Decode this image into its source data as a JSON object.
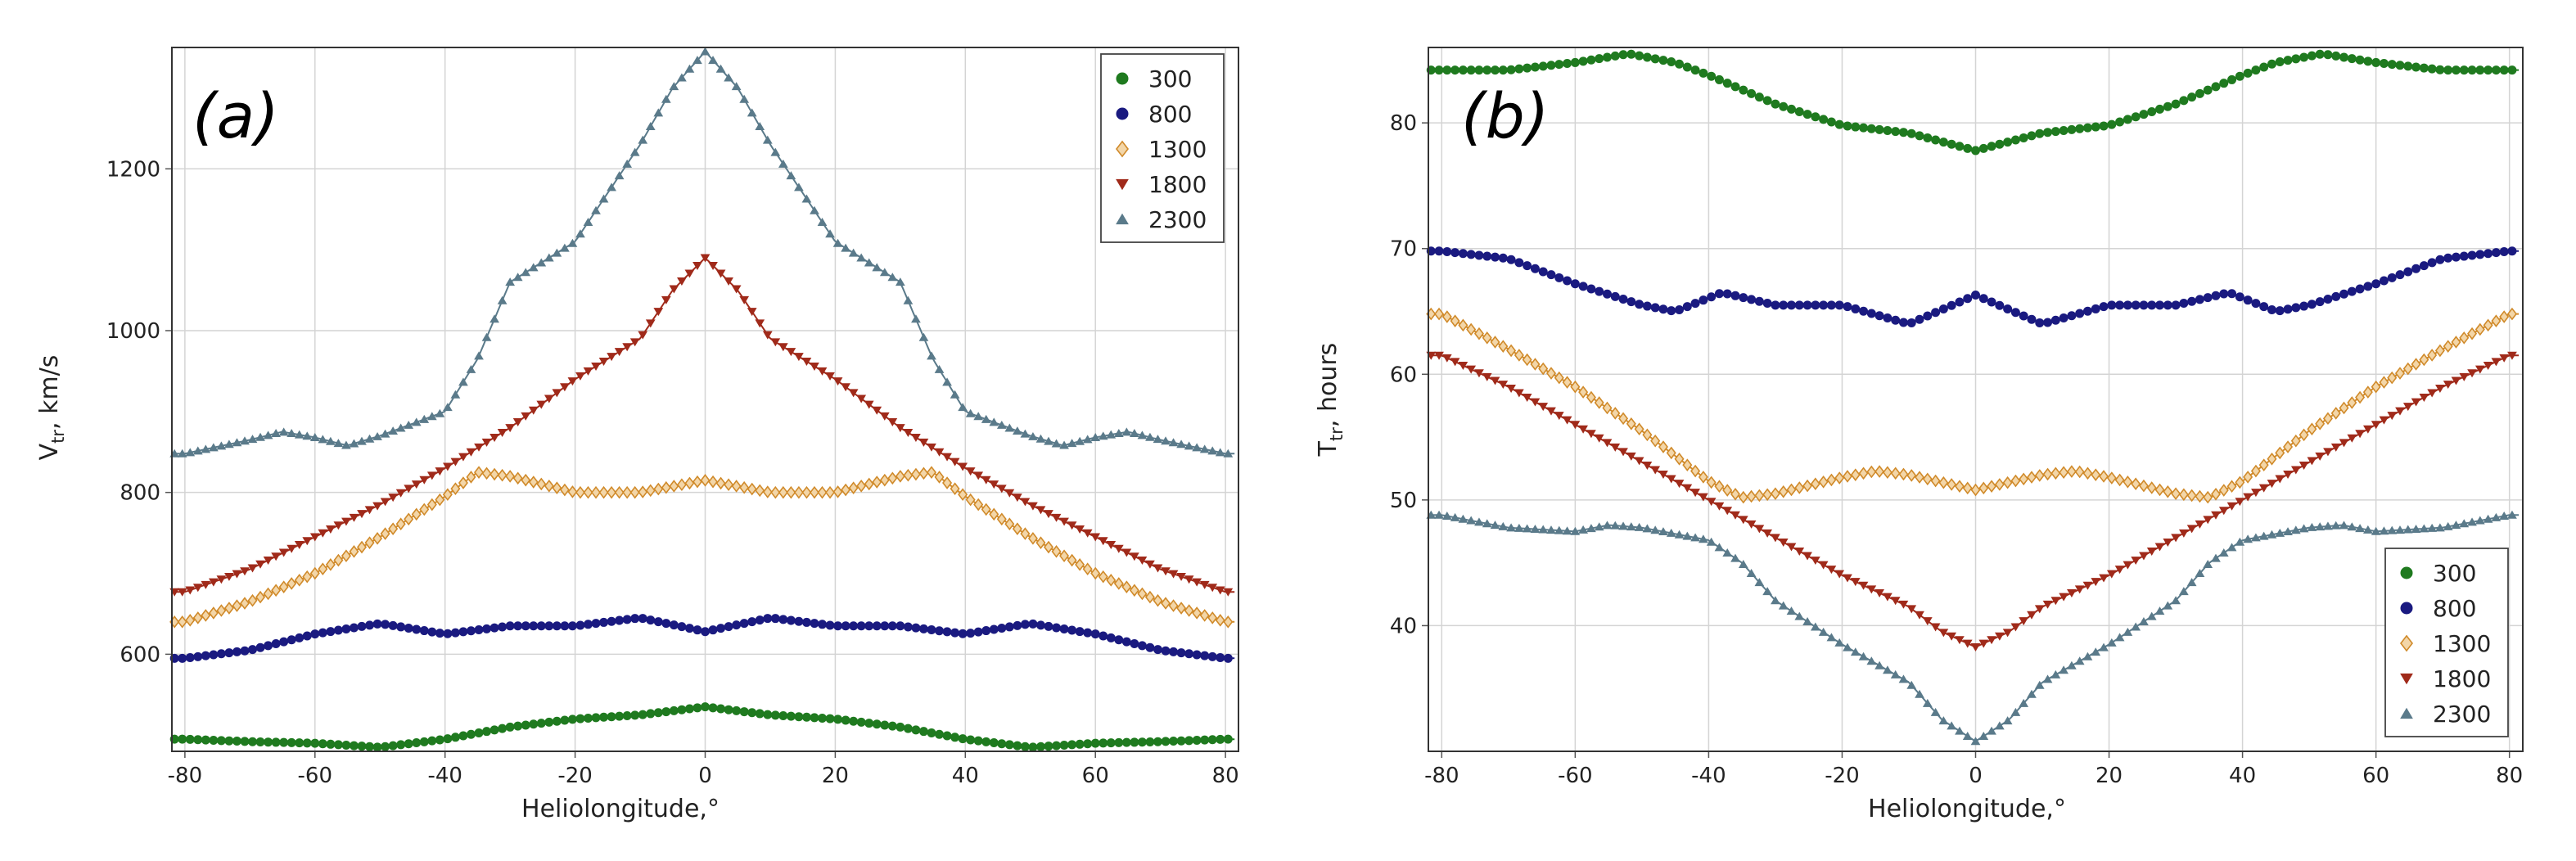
{
  "series_colors": {
    "300": "#1f7a1f",
    "800": "#1a1a80",
    "1300": "#d08a2a",
    "1800": "#a02a1a",
    "2300": "#5a7a8a"
  },
  "chart_data": [
    {
      "type": "line",
      "panel_label": "(a)",
      "xlabel": "Heliolongitude,°",
      "ylabel": "Vtr, km/s",
      "ylabel_main": "V",
      "ylabel_sub": "tr",
      "ylabel_rest": ", km/s",
      "xlim": [
        -82,
        82
      ],
      "ylim": [
        480,
        1350
      ],
      "xticks": [
        -80,
        -60,
        -40,
        -20,
        0,
        20,
        40,
        60,
        80
      ],
      "xtick_labels": [
        "-80",
        "-60",
        "-40",
        "-20",
        "0",
        "20",
        "40",
        "60",
        "80"
      ],
      "yticks": [
        600,
        800,
        1000,
        1200
      ],
      "ytick_labels": [
        "600",
        "800",
        "1000",
        "1200"
      ],
      "legend_position": "top-right",
      "legend": [
        "300",
        "800",
        "1300",
        "1800",
        "2300"
      ],
      "series": [
        {
          "name": "300",
          "marker": "circle",
          "x": [
            -80,
            -70,
            -60,
            -50,
            -40,
            -30,
            -20,
            -10,
            0,
            10,
            20,
            30,
            40,
            50,
            60,
            70,
            80
          ],
          "values": [
            495,
            492,
            490,
            485,
            495,
            510,
            520,
            525,
            535,
            525,
            520,
            510,
            495,
            485,
            490,
            492,
            495
          ]
        },
        {
          "name": "800",
          "marker": "circle",
          "x": [
            -80,
            -70,
            -60,
            -50,
            -40,
            -30,
            -20,
            -10,
            0,
            10,
            20,
            30,
            40,
            50,
            60,
            70,
            80
          ],
          "values": [
            595,
            605,
            625,
            638,
            625,
            635,
            635,
            645,
            628,
            645,
            635,
            635,
            625,
            638,
            625,
            605,
            595
          ]
        },
        {
          "name": "1300",
          "marker": "diamond",
          "x": [
            -80,
            -70,
            -60,
            -50,
            -40,
            -35,
            -30,
            -20,
            -10,
            0,
            10,
            20,
            30,
            35,
            40,
            50,
            60,
            70,
            80
          ],
          "values": [
            640,
            665,
            700,
            745,
            795,
            825,
            820,
            800,
            800,
            815,
            800,
            800,
            820,
            825,
            795,
            745,
            700,
            665,
            640
          ]
        },
        {
          "name": "1800",
          "marker": "triangle-down",
          "x": [
            -80,
            -70,
            -60,
            -50,
            -40,
            -30,
            -20,
            -10,
            -5,
            0,
            5,
            10,
            20,
            30,
            40,
            50,
            60,
            70,
            80
          ],
          "values": [
            677,
            705,
            745,
            785,
            830,
            880,
            940,
            990,
            1050,
            1090,
            1050,
            990,
            940,
            880,
            830,
            785,
            745,
            705,
            677
          ]
        },
        {
          "name": "2300",
          "marker": "triangle-up",
          "x": [
            -80,
            -70,
            -65,
            -60,
            -55,
            -50,
            -40,
            -35,
            -30,
            -20,
            -10,
            -5,
            0,
            5,
            10,
            20,
            30,
            35,
            40,
            50,
            55,
            60,
            65,
            70,
            80
          ],
          "values": [
            848,
            865,
            875,
            868,
            858,
            870,
            900,
            965,
            1060,
            1110,
            1230,
            1300,
            1345,
            1300,
            1230,
            1110,
            1060,
            965,
            900,
            870,
            858,
            868,
            875,
            865,
            848
          ]
        }
      ]
    },
    {
      "type": "line",
      "panel_label": "(b)",
      "xlabel": "Heliolongitude,°",
      "ylabel": "Ttr, hours",
      "ylabel_main": "T",
      "ylabel_sub": "tr",
      "ylabel_rest": ", hours",
      "xlim": [
        -82,
        82
      ],
      "ylim": [
        30,
        86
      ],
      "xticks": [
        -80,
        -60,
        -40,
        -20,
        0,
        20,
        40,
        60,
        80
      ],
      "xtick_labels": [
        "-80",
        "-60",
        "-40",
        "-20",
        "0",
        "20",
        "40",
        "60",
        "80"
      ],
      "yticks": [
        40,
        50,
        60,
        70,
        80
      ],
      "ytick_labels": [
        "40",
        "50",
        "60",
        "70",
        "80"
      ],
      "legend_position": "bottom-right",
      "legend": [
        "300",
        "800",
        "1300",
        "1800",
        "2300"
      ],
      "series": [
        {
          "name": "300",
          "marker": "circle",
          "x": [
            -80,
            -70,
            -60,
            -52,
            -45,
            -40,
            -30,
            -20,
            -10,
            0,
            10,
            20,
            30,
            40,
            45,
            52,
            60,
            70,
            80
          ],
          "values": [
            84.2,
            84.2,
            84.8,
            85.5,
            84.8,
            83.8,
            81.5,
            79.8,
            79.2,
            77.8,
            79.2,
            79.8,
            81.5,
            83.8,
            84.8,
            85.5,
            84.8,
            84.2,
            84.2
          ]
        },
        {
          "name": "800",
          "marker": "circle",
          "x": [
            -80,
            -70,
            -60,
            -50,
            -45,
            -38,
            -30,
            -20,
            -10,
            0,
            10,
            20,
            30,
            38,
            45,
            50,
            60,
            70,
            80
          ],
          "values": [
            69.8,
            69.2,
            67.2,
            65.5,
            65.0,
            66.5,
            65.5,
            65.5,
            64.0,
            66.3,
            64.0,
            65.5,
            65.5,
            66.5,
            65.0,
            65.5,
            67.2,
            69.2,
            69.8
          ]
        },
        {
          "name": "1300",
          "marker": "diamond",
          "x": [
            -80,
            -70,
            -60,
            -50,
            -40,
            -35,
            -30,
            -20,
            -15,
            -10,
            0,
            10,
            15,
            20,
            30,
            35,
            40,
            50,
            60,
            70,
            80
          ],
          "values": [
            64.8,
            62.0,
            59.0,
            55.5,
            51.5,
            50.2,
            50.5,
            51.8,
            52.3,
            52.0,
            50.8,
            52.0,
            52.3,
            51.8,
            50.5,
            50.2,
            51.5,
            55.5,
            59.0,
            62.0,
            64.8
          ]
        },
        {
          "name": "1800",
          "marker": "triangle-down",
          "x": [
            -80,
            -70,
            -60,
            -50,
            -40,
            -30,
            -20,
            -10,
            -5,
            0,
            5,
            10,
            20,
            30,
            40,
            50,
            60,
            70,
            80
          ],
          "values": [
            61.5,
            59.0,
            56.0,
            53.0,
            50.0,
            47.0,
            44.0,
            41.5,
            39.5,
            38.3,
            39.5,
            41.5,
            44.0,
            47.0,
            50.0,
            53.0,
            56.0,
            59.0,
            61.5
          ]
        },
        {
          "name": "2300",
          "marker": "triangle-up",
          "x": [
            -80,
            -70,
            -60,
            -55,
            -50,
            -40,
            -35,
            -30,
            -20,
            -10,
            -5,
            0,
            5,
            10,
            20,
            30,
            35,
            40,
            50,
            55,
            60,
            70,
            80
          ],
          "values": [
            48.8,
            47.8,
            47.5,
            48.0,
            47.8,
            46.8,
            45.0,
            42.0,
            38.5,
            35.5,
            32.5,
            30.8,
            32.5,
            35.5,
            38.5,
            42.0,
            45.0,
            46.8,
            47.8,
            48.0,
            47.5,
            47.8,
            48.8
          ]
        }
      ]
    }
  ]
}
